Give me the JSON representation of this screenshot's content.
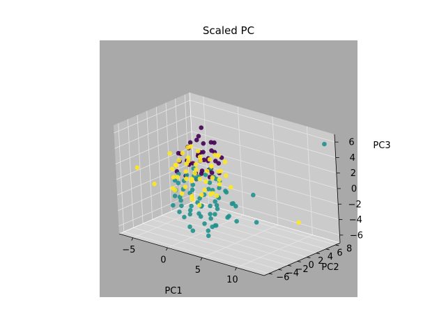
{
  "chart_data": {
    "type": "scatter",
    "projection": "3d",
    "title": "Scaled PC",
    "xlabel": "PC1",
    "ylabel": "PC2",
    "zlabel": "PC3",
    "xlim": [
      -7,
      14
    ],
    "ylim": [
      -7,
      9
    ],
    "zlim": [
      -7,
      7
    ],
    "xticks": [
      "−5",
      "0",
      "5",
      "10"
    ],
    "yticks": [
      "−6",
      "−4",
      "−2",
      "0",
      "2",
      "4",
      "6",
      "8"
    ],
    "zticks": [
      "−6",
      "−4",
      "−2",
      "0",
      "2",
      "4",
      "6"
    ],
    "grid": true,
    "legend": "none",
    "pane_color": "#cbcbcb",
    "axes_background": "#a9a9a9",
    "series": [
      {
        "color": "#440154",
        "points": [
          [
            -1.5,
            0.5,
            3.5
          ],
          [
            -0.6,
            1.2,
            2.8
          ],
          [
            0.4,
            -0.3,
            3.2
          ],
          [
            1.2,
            0.6,
            2.5
          ],
          [
            -2.0,
            -0.8,
            2.0
          ],
          [
            0.0,
            1.5,
            4.2
          ],
          [
            2.0,
            -0.5,
            1.8
          ],
          [
            -1.0,
            2.2,
            2.6
          ],
          [
            1.5,
            1.0,
            3.8
          ],
          [
            -0.2,
            -1.4,
            2.2
          ],
          [
            0.8,
            2.6,
            3.0
          ],
          [
            -1.8,
            0.9,
            1.4
          ],
          [
            2.5,
            0.3,
            2.9
          ],
          [
            -0.7,
            -0.2,
            4.6
          ],
          [
            1.0,
            -1.8,
            1.5
          ],
          [
            0.3,
            0.8,
            6.5
          ],
          [
            -2.4,
            1.6,
            3.1
          ],
          [
            1.8,
            1.9,
            2.0
          ],
          [
            -1.2,
            -1.6,
            3.4
          ],
          [
            0.6,
            0.1,
            1.2
          ],
          [
            2.8,
            -1.1,
            2.4
          ],
          [
            -0.4,
            2.9,
            1.8
          ],
          [
            1.4,
            -0.6,
            4.0
          ],
          [
            -2.6,
            -0.1,
            2.7
          ],
          [
            0.1,
            -2.2,
            3.0
          ],
          [
            2.2,
            1.4,
            1.0
          ],
          [
            -1.6,
            2.4,
            4.0
          ],
          [
            0.9,
            1.7,
            0.6
          ],
          [
            -0.9,
            0.4,
            1.7
          ],
          [
            1.7,
            0.7,
            5.0
          ],
          [
            -2.1,
            -1.3,
            0.8
          ],
          [
            3.0,
            0.9,
            3.3
          ],
          [
            -0.3,
            1.0,
            5.2
          ],
          [
            0.5,
            -1.0,
            0.4
          ],
          [
            1.1,
            2.2,
            4.4
          ],
          [
            -1.4,
            -0.5,
            0.2
          ],
          [
            2.4,
            -1.9,
            3.6
          ],
          [
            -0.8,
            1.9,
            0.0
          ],
          [
            0.2,
            0.4,
            2.3
          ],
          [
            1.9,
            -0.2,
            0.8
          ]
        ]
      },
      {
        "color": "#21918c",
        "points": [
          [
            0.5,
            -2.5,
            -1.0
          ],
          [
            2.5,
            -3.0,
            -2.0
          ],
          [
            1.0,
            -1.0,
            -3.0
          ],
          [
            3.5,
            -2.0,
            0.0
          ],
          [
            -1.0,
            -3.5,
            -1.5
          ],
          [
            2.0,
            0.5,
            -2.5
          ],
          [
            4.0,
            -1.5,
            -1.0
          ],
          [
            0.0,
            -2.0,
            -4.0
          ],
          [
            3.0,
            -4.0,
            -3.0
          ],
          [
            1.5,
            -3.2,
            0.5
          ],
          [
            -1.5,
            -1.8,
            -2.2
          ],
          [
            4.5,
            -2.6,
            -2.0
          ],
          [
            0.8,
            0.0,
            -1.8
          ],
          [
            2.8,
            -0.8,
            -3.6
          ],
          [
            -0.5,
            -4.0,
            -0.5
          ],
          [
            5.0,
            -3.4,
            -1.2
          ],
          [
            1.2,
            -1.5,
            1.0
          ],
          [
            3.8,
            0.2,
            -0.6
          ],
          [
            -2.0,
            -2.6,
            -3.2
          ],
          [
            2.2,
            -2.2,
            -4.6
          ],
          [
            4.2,
            -3.8,
            0.8
          ],
          [
            0.2,
            -0.6,
            -2.8
          ],
          [
            3.2,
            -1.2,
            1.4
          ],
          [
            -1.2,
            -1.2,
            -0.2
          ],
          [
            1.8,
            -4.4,
            -2.4
          ],
          [
            5.5,
            -2.0,
            -3.0
          ],
          [
            0.6,
            -3.0,
            -5.2
          ],
          [
            2.6,
            0.8,
            0.2
          ],
          [
            -0.8,
            -2.8,
            1.2
          ],
          [
            3.6,
            -2.8,
            -1.8
          ],
          [
            1.4,
            0.2,
            -4.2
          ],
          [
            4.8,
            -1.0,
            -0.2
          ],
          [
            -1.8,
            -0.6,
            -1.6
          ],
          [
            2.4,
            -3.6,
            1.6
          ],
          [
            0.4,
            -1.8,
            -0.8
          ],
          [
            6.0,
            -2.4,
            -2.6
          ],
          [
            1.6,
            -2.4,
            -3.4
          ],
          [
            3.4,
            -4.6,
            -0.4
          ],
          [
            -0.2,
            -3.4,
            -2.6
          ],
          [
            2.9,
            -1.6,
            -5.0
          ],
          [
            4.4,
            0.6,
            -2.2
          ],
          [
            1.1,
            -3.8,
            1.8
          ],
          [
            -1.4,
            -2.2,
            -4.0
          ],
          [
            3.1,
            -0.4,
            -1.4
          ],
          [
            0.7,
            -4.2,
            -3.6
          ],
          [
            5.2,
            -3.0,
            1.0
          ],
          [
            2.1,
            -0.2,
            2.0
          ],
          [
            -0.6,
            -0.8,
            -3.4
          ],
          [
            3.9,
            -2.2,
            -4.4
          ],
          [
            1.3,
            -2.6,
            2.4
          ],
          [
            6.5,
            -1.6,
            -1.4
          ],
          [
            0.9,
            -5.0,
            -1.2
          ],
          [
            2.7,
            -1.4,
            0.6
          ],
          [
            4.6,
            -4.2,
            -2.8
          ],
          [
            -1.1,
            -3.2,
            0.4
          ],
          [
            1.9,
            0.4,
            -5.6
          ],
          [
            3.3,
            -3.0,
            2.2
          ],
          [
            0.3,
            -1.2,
            0.8
          ],
          [
            5.8,
            -0.6,
            -3.8
          ],
          [
            2.3,
            -4.8,
            -4.8
          ],
          [
            -2.2,
            -1.0,
            -0.8
          ],
          [
            4.1,
            -2.0,
            1.6
          ],
          [
            1.7,
            -0.8,
            -6.0
          ],
          [
            3.7,
            -3.6,
            -5.4
          ],
          [
            7.0,
            -2.8,
            -0.6
          ],
          [
            8.0,
            0.0,
            0.0
          ],
          [
            9.0,
            -1.0,
            -3.0
          ],
          [
            13.5,
            7.5,
            6.0
          ]
        ]
      },
      {
        "color": "#fde725",
        "points": [
          [
            -2.0,
            1.0,
            2.0
          ],
          [
            -1.0,
            -1.0,
            1.0
          ],
          [
            0.0,
            2.0,
            0.5
          ],
          [
            -3.0,
            0.0,
            -0.5
          ],
          [
            1.0,
            1.5,
            1.5
          ],
          [
            -2.5,
            -1.5,
            0.0
          ],
          [
            0.5,
            0.0,
            2.5
          ],
          [
            -1.5,
            2.5,
            -1.0
          ],
          [
            2.0,
            2.0,
            1.0
          ],
          [
            -3.5,
            1.2,
            1.2
          ],
          [
            -0.5,
            -2.0,
            -0.6
          ],
          [
            1.5,
            -0.5,
            0.2
          ],
          [
            -2.8,
            2.2,
            2.8
          ],
          [
            0.2,
            1.0,
            -1.6
          ],
          [
            -1.8,
            -0.4,
            3.0
          ],
          [
            2.6,
            0.8,
            -0.2
          ],
          [
            -0.8,
            1.8,
            2.2
          ],
          [
            -3.2,
            -0.8,
            -1.8
          ],
          [
            1.2,
            2.8,
            2.6
          ],
          [
            -1.2,
            0.4,
            -0.4
          ],
          [
            0.8,
            -1.4,
            1.8
          ],
          [
            -2.2,
            2.8,
            0.6
          ],
          [
            2.2,
            -0.2,
            -1.2
          ],
          [
            -0.2,
            0.6,
            3.4
          ],
          [
            -4.0,
            0.4,
            0.2
          ],
          [
            1.8,
            1.2,
            -2.0
          ],
          [
            -1.6,
            -2.2,
            2.0
          ],
          [
            0.4,
            2.4,
            1.2
          ],
          [
            -2.6,
            0.2,
            -2.6
          ],
          [
            3.0,
            1.6,
            0.8
          ],
          [
            -0.6,
            -0.6,
            -2.2
          ],
          [
            1.0,
            3.0,
            -0.6
          ],
          [
            -3.8,
            -0.2,
            2.4
          ],
          [
            0.6,
            -0.8,
            -3.0
          ],
          [
            -1.4,
            1.4,
            0.0
          ],
          [
            2.4,
            2.4,
            2.2
          ],
          [
            -2.4,
            -1.0,
            1.4
          ],
          [
            -0.4,
            3.2,
            1.6
          ],
          [
            1.6,
            0.2,
            -1.6
          ],
          [
            -3.0,
            1.8,
            -1.2
          ],
          [
            0.0,
            -1.8,
            2.8
          ],
          [
            2.8,
            0.4,
            1.6
          ],
          [
            -1.0,
            2.0,
            -2.8
          ],
          [
            -2.0,
            -2.0,
            -1.4
          ],
          [
            1.4,
            1.8,
            3.0
          ],
          [
            -0.8,
            0.0,
            4.0
          ],
          [
            3.2,
            2.2,
            -0.8
          ],
          [
            -3.4,
            2.6,
            0.4
          ],
          [
            0.8,
            -2.4,
            0.6
          ],
          [
            -1.8,
            1.2,
            -3.4
          ],
          [
            9.5,
            7.0,
            -5.0
          ],
          [
            -6.0,
            -0.6,
            -2.0
          ],
          [
            -6.0,
            -4.0,
            1.0
          ],
          [
            5.0,
            -4.0,
            2.5
          ]
        ]
      }
    ]
  }
}
